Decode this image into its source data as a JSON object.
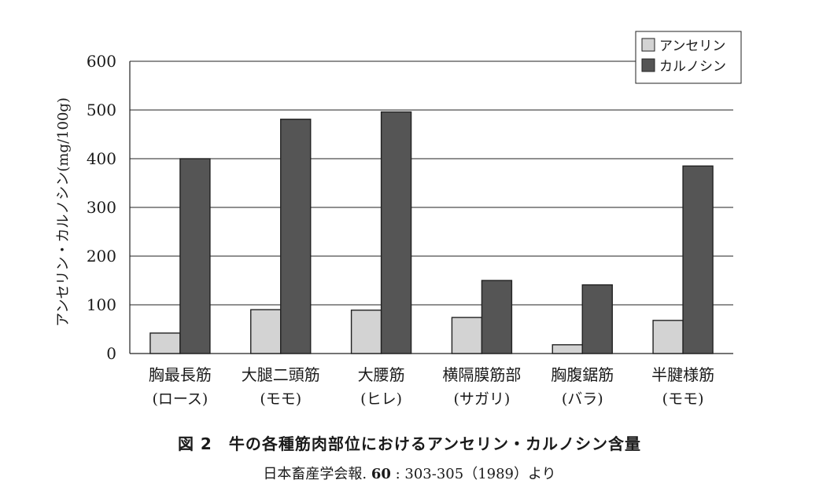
{
  "chart_data": {
    "type": "bar",
    "ylabel": "アンセリン・カルノシン(mg/100g)",
    "ylim": [
      0,
      600
    ],
    "yticks": [
      0,
      100,
      200,
      300,
      400,
      500,
      600
    ],
    "grid": true,
    "legend_position": "top-right",
    "categories": [
      {
        "name": "胸最長筋",
        "note": "(ロース)"
      },
      {
        "name": "大腿二頭筋",
        "note": "(モモ)"
      },
      {
        "name": "大腰筋",
        "note": "(ヒレ)"
      },
      {
        "name": "横隔膜筋部",
        "note": "(サガリ)"
      },
      {
        "name": "胸腹鋸筋",
        "note": "(バラ)"
      },
      {
        "name": "半腱様筋",
        "note": "(モモ)"
      }
    ],
    "series": [
      {
        "name": "アンセリン",
        "color": "#d3d3d3",
        "values": [
          42,
          90,
          89,
          74,
          18,
          68
        ]
      },
      {
        "name": "カルノシン",
        "color": "#555555",
        "values": [
          400,
          481,
          496,
          150,
          141,
          385
        ]
      }
    ]
  },
  "caption": {
    "title": "図 2　牛の各種筋肉部位におけるアンセリン・カルノシン含量",
    "source_prefix": "日本畜産学会報.",
    "source_volume": "60",
    "source_suffix": ": 303-305（1989）より"
  }
}
